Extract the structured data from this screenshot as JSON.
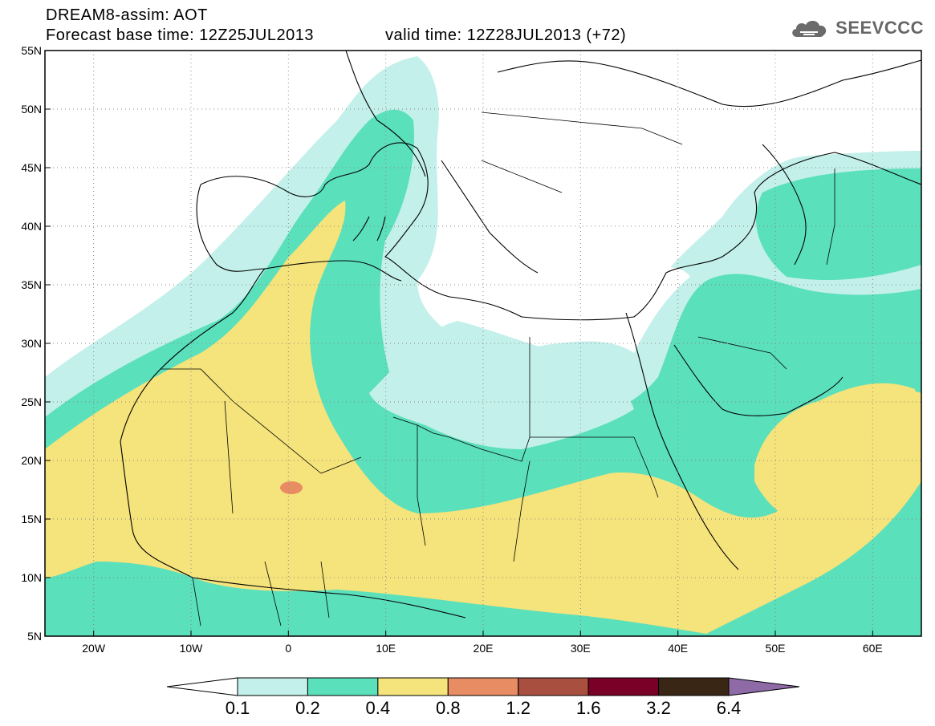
{
  "title": {
    "line1": "DREAM8-assim: AOT",
    "line2": "Forecast base time: 12Z25JUL2013",
    "valid": "valid time: 12Z28JUL2013 (+72)"
  },
  "logo": {
    "text": "SEEVCCC",
    "icon": "cloud-icon",
    "color": "#666666"
  },
  "map": {
    "lat_labels": [
      "55N",
      "50N",
      "45N",
      "40N",
      "35N",
      "30N",
      "25N",
      "20N",
      "15N",
      "10N",
      "5N"
    ],
    "lat_values": [
      55,
      50,
      45,
      40,
      35,
      30,
      25,
      20,
      15,
      10,
      5
    ],
    "lon_labels": [
      "20W",
      "10W",
      "0",
      "10E",
      "20E",
      "30E",
      "40E",
      "50E",
      "60E"
    ],
    "lon_values": [
      -20,
      -10,
      0,
      10,
      20,
      30,
      40,
      50,
      60
    ],
    "lon_range": [
      -25,
      65
    ],
    "lat_range": [
      5,
      55
    ],
    "grid": "dotted"
  },
  "colorbar": {
    "labels": [
      "0.1",
      "0.2",
      "0.4",
      "0.8",
      "1.2",
      "1.6",
      "3.2",
      "6.4"
    ],
    "colors": [
      "#c3f0ea",
      "#5be0bc",
      "#f5e37b",
      "#e88c64",
      "#a84f3f",
      "#7a0028",
      "#3a2614",
      "#8e6aa6"
    ]
  }
}
